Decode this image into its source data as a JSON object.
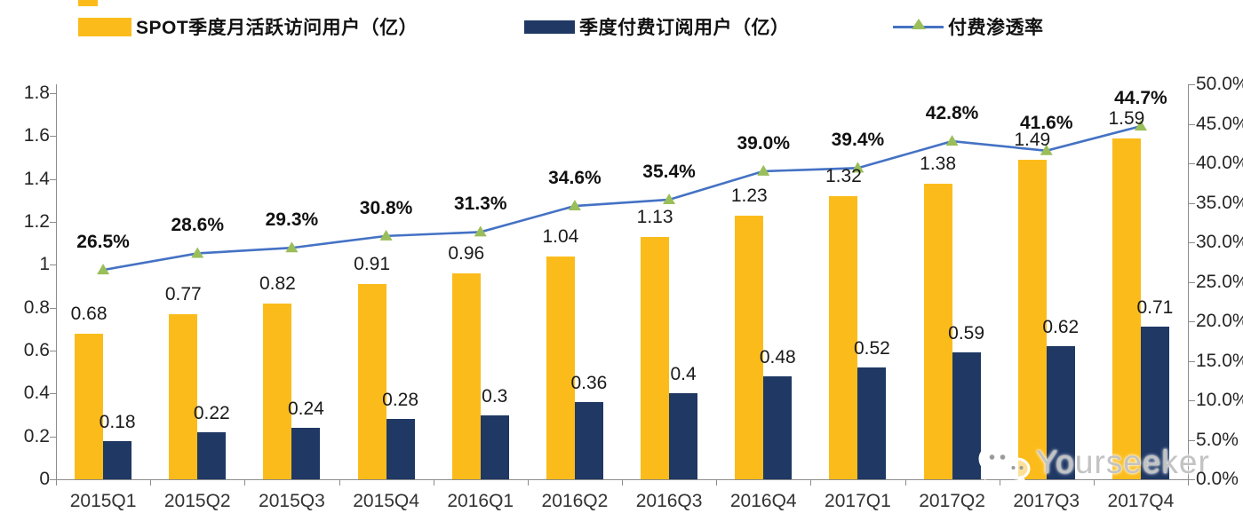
{
  "chart_data": {
    "type": "bar",
    "subtype": "combo-dual-axis-bar-line",
    "categories": [
      "2015Q1",
      "2015Q2",
      "2015Q3",
      "2015Q4",
      "2016Q1",
      "2016Q2",
      "2016Q3",
      "2016Q4",
      "2017Q1",
      "2017Q2",
      "2017Q3",
      "2017Q4"
    ],
    "series": [
      {
        "name": "SPOT季度月活跃访问用户（亿）",
        "type": "bar",
        "axis": "left",
        "color": "#FBBC1B",
        "values": [
          0.68,
          0.77,
          0.82,
          0.91,
          0.96,
          1.04,
          1.13,
          1.23,
          1.32,
          1.38,
          1.49,
          1.59
        ],
        "labels": [
          "0.68",
          "0.77",
          "0.82",
          "0.91",
          "0.96",
          "1.04",
          "1.13",
          "1.23",
          "1.32",
          "1.38",
          "1.49",
          "1.59"
        ]
      },
      {
        "name": "季度付费订阅用户（亿）",
        "type": "bar",
        "axis": "left",
        "color": "#1F3864",
        "values": [
          0.18,
          0.22,
          0.24,
          0.28,
          0.3,
          0.36,
          0.4,
          0.48,
          0.52,
          0.59,
          0.62,
          0.71
        ],
        "labels": [
          "0.18",
          "0.22",
          "0.24",
          "0.28",
          "0.3",
          "0.36",
          "0.4",
          "0.48",
          "0.52",
          "0.59",
          "0.62",
          "0.71"
        ]
      },
      {
        "name": "付费渗透率",
        "type": "line",
        "axis": "right",
        "color": "#4472C4",
        "marker": "triangle",
        "marker_color": "#9ABE5A",
        "values": [
          26.5,
          28.6,
          29.3,
          30.8,
          31.3,
          34.6,
          35.4,
          39.0,
          39.4,
          42.8,
          41.6,
          44.7
        ],
        "labels": [
          "26.5%",
          "28.6%",
          "29.3%",
          "30.8%",
          "31.3%",
          "34.6%",
          "35.4%",
          "39.0%",
          "39.4%",
          "42.8%",
          "41.6%",
          "44.7%"
        ]
      }
    ],
    "left_axis": {
      "min": 0,
      "max": 1.8,
      "step": 0.2,
      "ticks": [
        "0",
        "0.2",
        "0.4",
        "0.6",
        "0.8",
        "1",
        "1.2",
        "1.4",
        "1.6",
        "1.8"
      ]
    },
    "right_axis": {
      "min": 0,
      "max": 50,
      "step": 5,
      "ticks": [
        "0.0%",
        "5.0%",
        "10.0%",
        "15.0%",
        "20.0%",
        "25.0%",
        "30.0%",
        "35.0%",
        "40.0%",
        "45.0%",
        "50.0%"
      ]
    },
    "grid": false,
    "legend_position": "top"
  },
  "watermark": {
    "text": "Yourseeker",
    "icon": "wechat-icon"
  },
  "colors": {
    "axis": "#8C8C8C",
    "value_label": "#1a1a1a",
    "x_label": "#333333",
    "bar_mau": "#FBBC1B",
    "bar_subs": "#1F3864",
    "line": "#4472C4",
    "marker": "#9ABE5A",
    "watermark": "#C3C3C3"
  }
}
